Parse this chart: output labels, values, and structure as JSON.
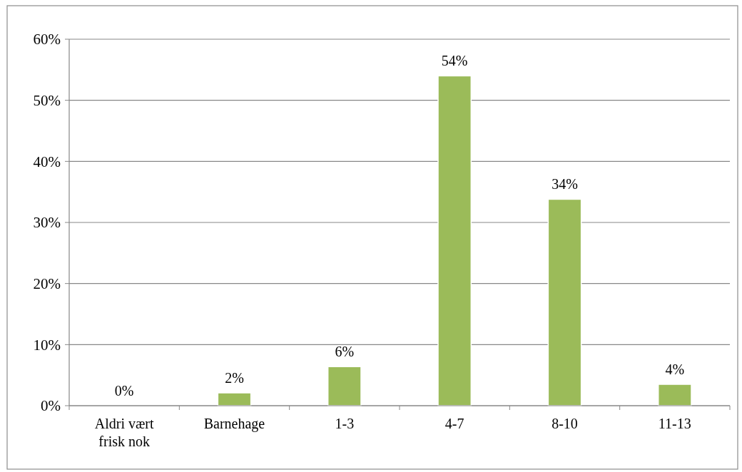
{
  "chart_data": {
    "type": "bar",
    "categories": [
      "Aldri vært frisk nok",
      "Barnehage",
      "1-3",
      "4-7",
      "8-10",
      "11-13"
    ],
    "values": [
      0,
      2.1,
      6.4,
      54,
      33.8,
      3.5
    ],
    "value_labels": [
      "0%",
      "2%",
      "6%",
      "54%",
      "34%",
      "4%"
    ],
    "color": "#9bbb59",
    "ylim": [
      0,
      60
    ],
    "yticks": [
      {
        "value": 0,
        "label": "0%"
      },
      {
        "value": 10,
        "label": "10%"
      },
      {
        "value": 20,
        "label": "20%"
      },
      {
        "value": 30,
        "label": "30%"
      },
      {
        "value": 40,
        "label": "40%"
      },
      {
        "value": 50,
        "label": "50%"
      },
      {
        "value": 60,
        "label": "60%"
      }
    ],
    "grid": "y"
  }
}
